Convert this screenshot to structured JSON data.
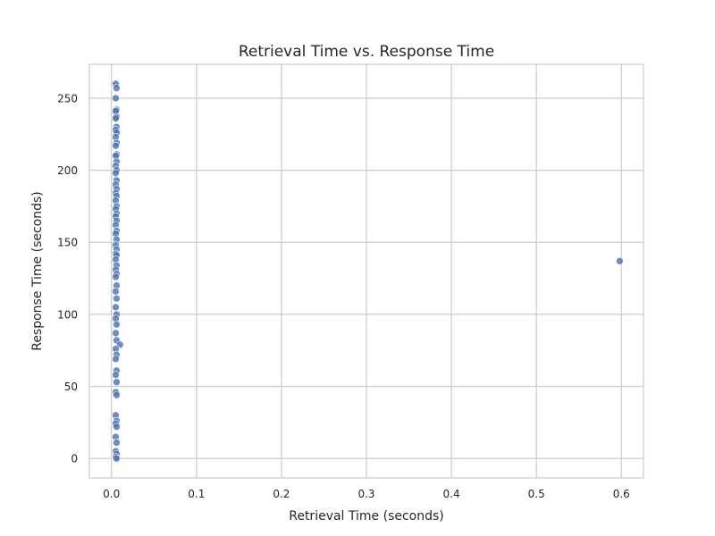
{
  "chart_data": {
    "type": "scatter",
    "title": "Retrieval Time vs. Response Time",
    "xlabel": "Retrieval Time (seconds)",
    "ylabel": "Response Time (seconds)",
    "xlim": [
      -0.026,
      0.626
    ],
    "ylim": [
      -13.5,
      273.5
    ],
    "xticks": [
      0.0,
      0.1,
      0.2,
      0.3,
      0.4,
      0.5,
      0.6
    ],
    "xtick_labels": [
      "0.0",
      "0.1",
      "0.2",
      "0.3",
      "0.4",
      "0.5",
      "0.6"
    ],
    "yticks": [
      0,
      50,
      100,
      150,
      200,
      250
    ],
    "ytick_labels": [
      "0",
      "50",
      "100",
      "150",
      "200",
      "250"
    ],
    "grid": true,
    "colors": {
      "marker": "#4c72b0",
      "grid": "#cccccc",
      "spine": "#cccccc",
      "text": "#262626"
    },
    "points": [
      {
        "x": 0.005,
        "y": 260
      },
      {
        "x": 0.006,
        "y": 257
      },
      {
        "x": 0.005,
        "y": 250
      },
      {
        "x": 0.006,
        "y": 242
      },
      {
        "x": 0.005,
        "y": 241
      },
      {
        "x": 0.006,
        "y": 237
      },
      {
        "x": 0.005,
        "y": 236
      },
      {
        "x": 0.006,
        "y": 230
      },
      {
        "x": 0.005,
        "y": 228
      },
      {
        "x": 0.006,
        "y": 226
      },
      {
        "x": 0.005,
        "y": 223
      },
      {
        "x": 0.006,
        "y": 219
      },
      {
        "x": 0.005,
        "y": 217
      },
      {
        "x": 0.006,
        "y": 211
      },
      {
        "x": 0.005,
        "y": 210
      },
      {
        "x": 0.006,
        "y": 206
      },
      {
        "x": 0.005,
        "y": 203
      },
      {
        "x": 0.006,
        "y": 200
      },
      {
        "x": 0.005,
        "y": 198
      },
      {
        "x": 0.006,
        "y": 193
      },
      {
        "x": 0.005,
        "y": 190
      },
      {
        "x": 0.006,
        "y": 187
      },
      {
        "x": 0.005,
        "y": 184
      },
      {
        "x": 0.006,
        "y": 182
      },
      {
        "x": 0.005,
        "y": 179
      },
      {
        "x": 0.006,
        "y": 175
      },
      {
        "x": 0.005,
        "y": 173
      },
      {
        "x": 0.006,
        "y": 170
      },
      {
        "x": 0.005,
        "y": 168
      },
      {
        "x": 0.006,
        "y": 165
      },
      {
        "x": 0.005,
        "y": 162
      },
      {
        "x": 0.006,
        "y": 158
      },
      {
        "x": 0.005,
        "y": 156
      },
      {
        "x": 0.006,
        "y": 152
      },
      {
        "x": 0.005,
        "y": 148
      },
      {
        "x": 0.006,
        "y": 145
      },
      {
        "x": 0.005,
        "y": 142
      },
      {
        "x": 0.006,
        "y": 141
      },
      {
        "x": 0.005,
        "y": 138
      },
      {
        "x": 0.006,
        "y": 134
      },
      {
        "x": 0.005,
        "y": 131
      },
      {
        "x": 0.006,
        "y": 128
      },
      {
        "x": 0.005,
        "y": 126
      },
      {
        "x": 0.006,
        "y": 120
      },
      {
        "x": 0.005,
        "y": 116
      },
      {
        "x": 0.006,
        "y": 111
      },
      {
        "x": 0.005,
        "y": 105
      },
      {
        "x": 0.006,
        "y": 100
      },
      {
        "x": 0.005,
        "y": 97
      },
      {
        "x": 0.006,
        "y": 93
      },
      {
        "x": 0.005,
        "y": 87
      },
      {
        "x": 0.006,
        "y": 82
      },
      {
        "x": 0.01,
        "y": 79
      },
      {
        "x": 0.005,
        "y": 76
      },
      {
        "x": 0.006,
        "y": 72
      },
      {
        "x": 0.005,
        "y": 69
      },
      {
        "x": 0.006,
        "y": 61
      },
      {
        "x": 0.005,
        "y": 58
      },
      {
        "x": 0.006,
        "y": 53
      },
      {
        "x": 0.005,
        "y": 46
      },
      {
        "x": 0.006,
        "y": 44
      },
      {
        "x": 0.005,
        "y": 30
      },
      {
        "x": 0.006,
        "y": 26
      },
      {
        "x": 0.005,
        "y": 24
      },
      {
        "x": 0.006,
        "y": 22
      },
      {
        "x": 0.005,
        "y": 15
      },
      {
        "x": 0.006,
        "y": 11
      },
      {
        "x": 0.005,
        "y": 5
      },
      {
        "x": 0.006,
        "y": 3
      },
      {
        "x": 0.005,
        "y": 1
      },
      {
        "x": 0.006,
        "y": 0
      },
      {
        "x": 0.598,
        "y": 137
      }
    ]
  }
}
